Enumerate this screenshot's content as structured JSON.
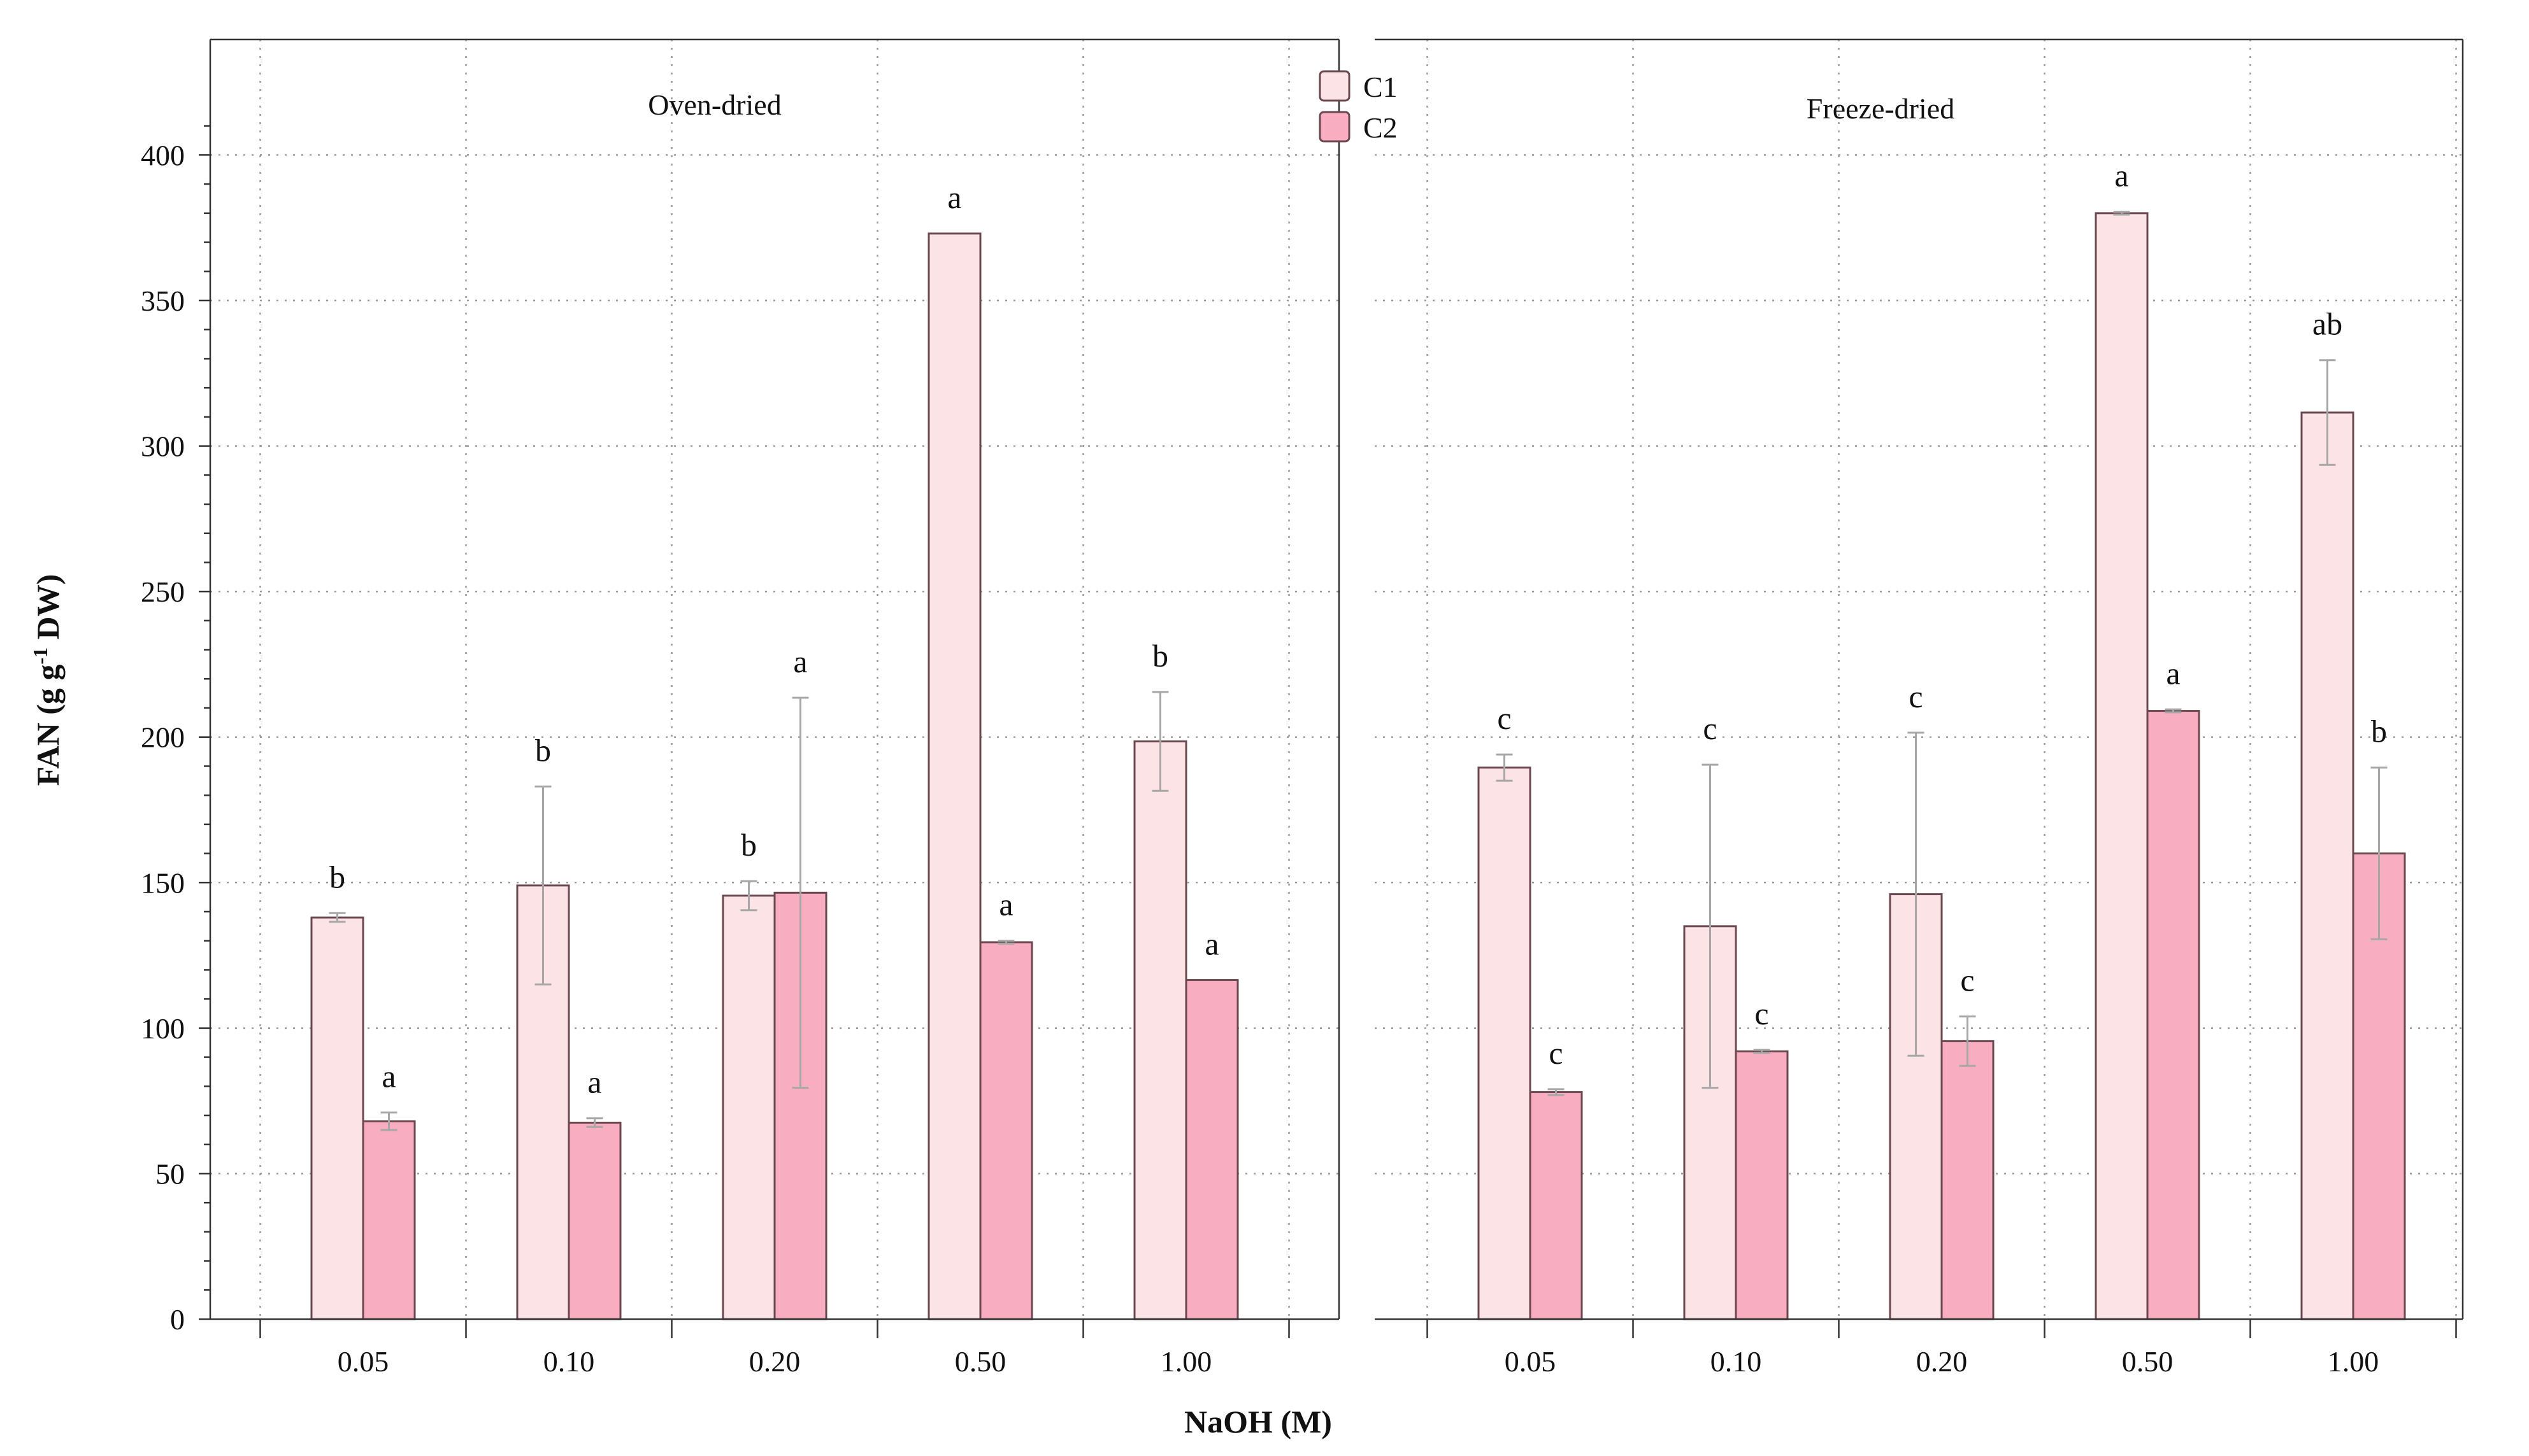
{
  "chart_data": {
    "type": "bar",
    "ylabel": "FAN (g g",
    "ylabel_sup": "-1",
    "ylabel_tail": " DW)",
    "xlabel": "NaOH (M)",
    "ylim": [
      0,
      420
    ],
    "yticks": [
      0,
      50,
      100,
      150,
      200,
      250,
      300,
      350,
      400
    ],
    "grid": true,
    "legend_position": "top-center",
    "series": [
      {
        "name": "C1",
        "color": "#fce4e6"
      },
      {
        "name": "C2",
        "color": "#f8adc0"
      }
    ],
    "panels": [
      {
        "title": "Oven-dried",
        "categories": [
          "0.05",
          "0.10",
          "0.20",
          "0.50",
          "1.00"
        ],
        "values": {
          "C1": [
            138,
            149,
            145.5,
            373,
            198.5
          ],
          "C2": [
            68,
            67.5,
            146.5,
            129.5,
            116.5
          ]
        },
        "errors": {
          "C1": [
            1.5,
            34,
            5,
            0,
            17
          ],
          "C2": [
            3,
            1.5,
            67,
            0.5,
            0
          ]
        },
        "letters": {
          "C1": [
            "b",
            "b",
            "b",
            "a",
            "b"
          ],
          "C2": [
            "a",
            "a",
            "a",
            "a",
            "a"
          ]
        }
      },
      {
        "title": "Freeze-dried",
        "categories": [
          "0.05",
          "0.10",
          "0.20",
          "0.50",
          "1.00"
        ],
        "values": {
          "C1": [
            189.5,
            135,
            146,
            380,
            311.5
          ],
          "C2": [
            78,
            92,
            95.5,
            209,
            160
          ]
        },
        "errors": {
          "C1": [
            4.5,
            55.5,
            55.5,
            0.5,
            18
          ],
          "C2": [
            1,
            0.5,
            8.5,
            0.5,
            29.5
          ]
        },
        "letters": {
          "C1": [
            "c",
            "c",
            "c",
            "a",
            "ab"
          ],
          "C2": [
            "c",
            "c",
            "c",
            "a",
            "b"
          ]
        }
      }
    ]
  }
}
